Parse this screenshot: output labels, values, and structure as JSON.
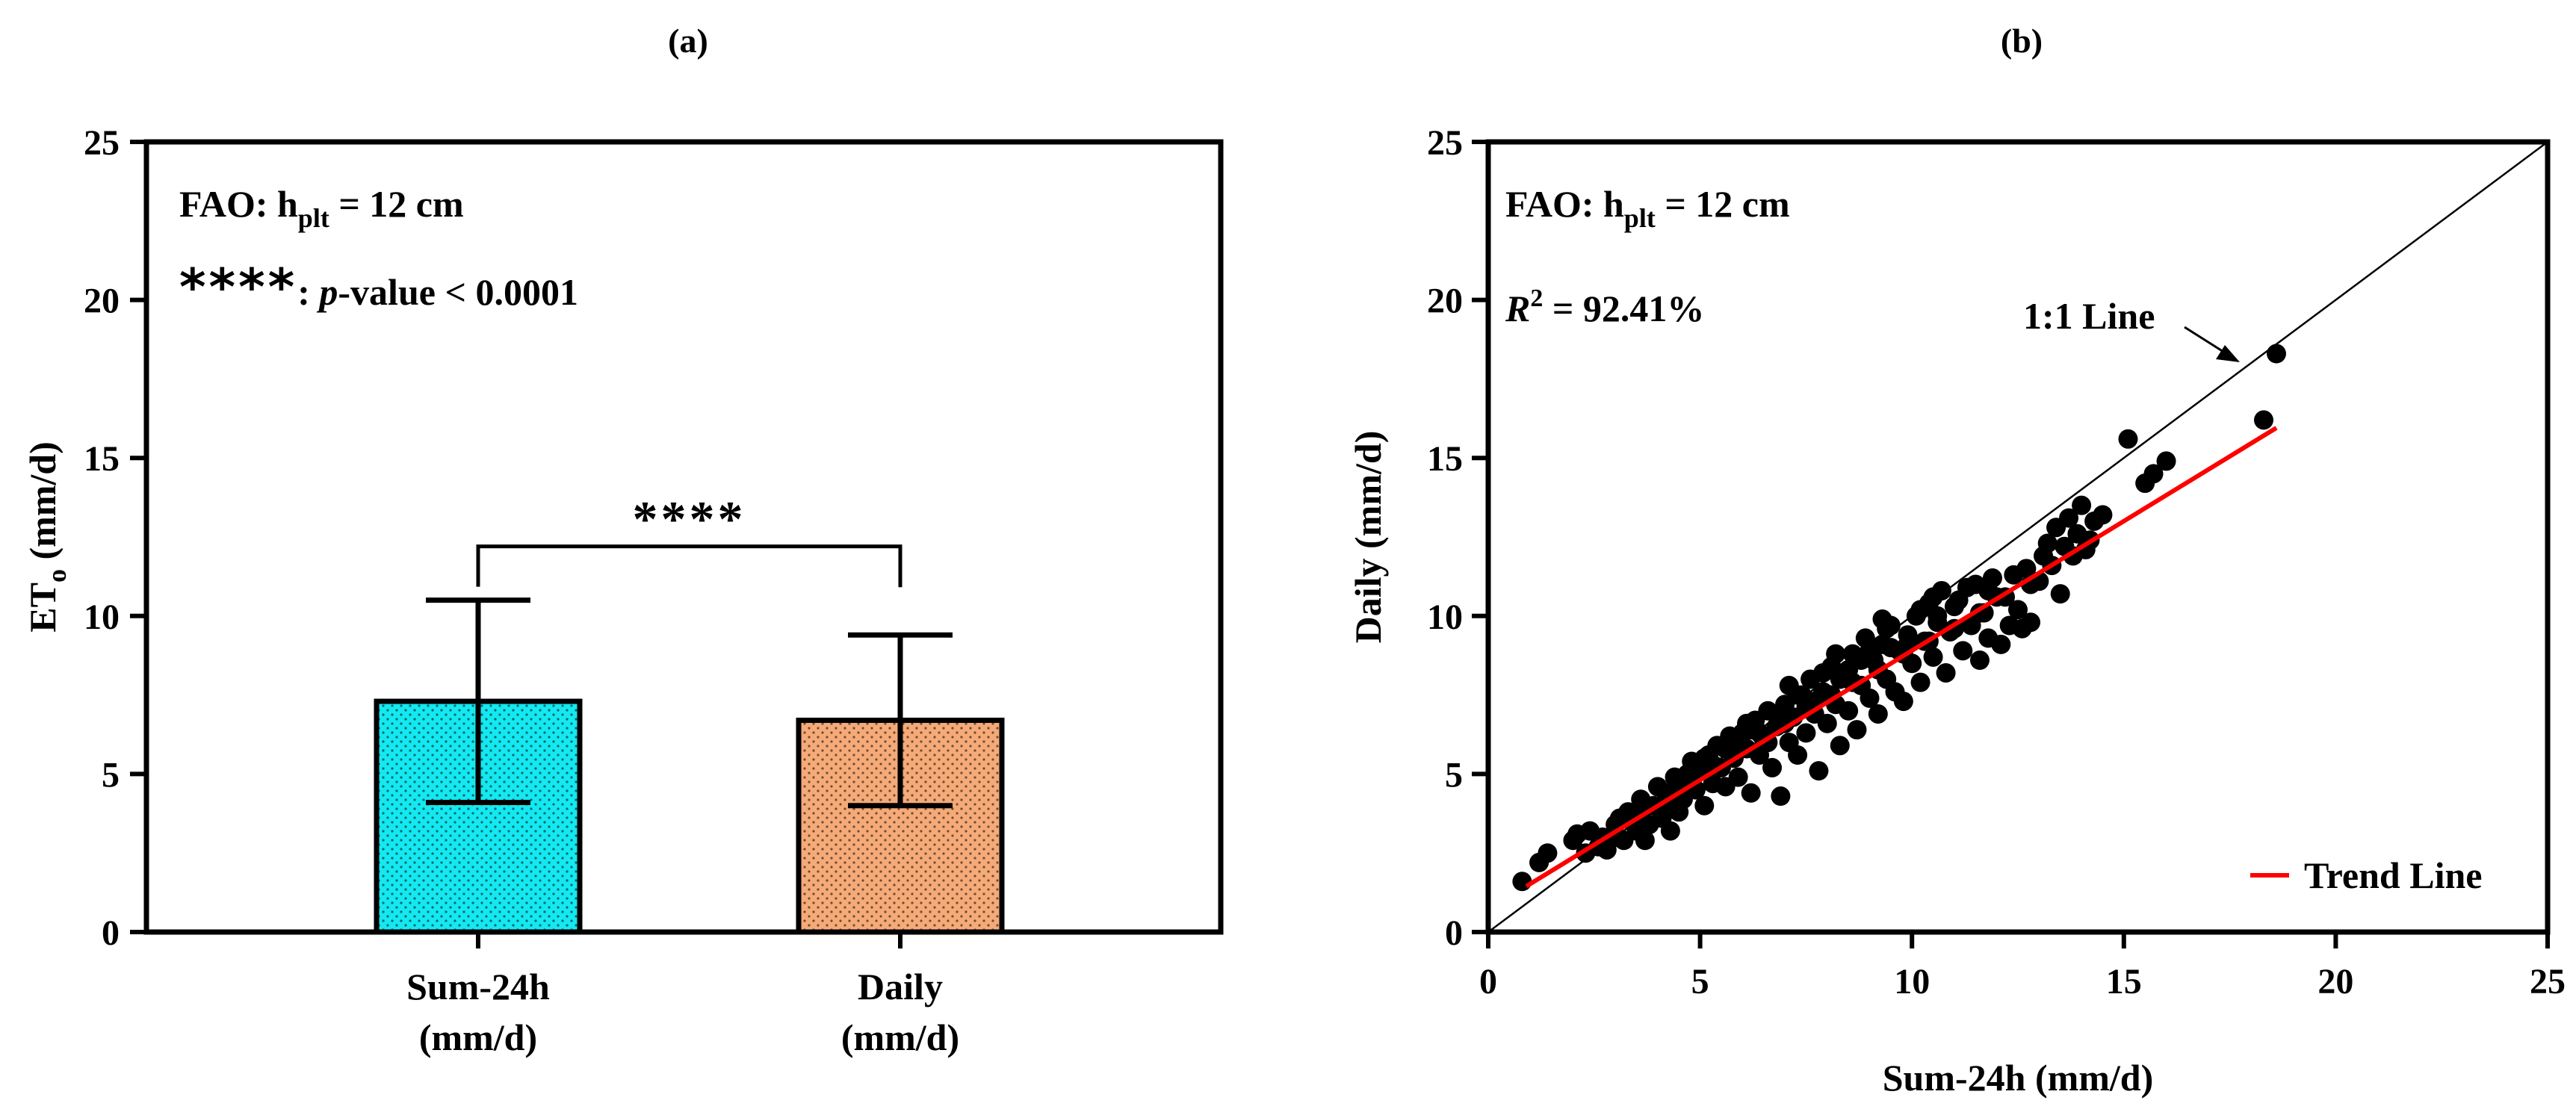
{
  "chart_data": [
    {
      "panel_label": "(a)",
      "type": "bar",
      "annotation": {
        "line1_prefix": "FAO: h",
        "line1_sub": "plt",
        "line1_suffix": " = 12 cm",
        "line2_stars": "****",
        "line2_sep": ": ",
        "line2_p": "p",
        "line2_rest": "-value < 0.0001"
      },
      "ylabel": "ET",
      "ylabel_sub": "o",
      "ylabel_suffix": " (mm/d)",
      "ylim": [
        0,
        25
      ],
      "yticks": [
        0,
        5,
        10,
        15,
        20,
        25
      ],
      "categories": [
        {
          "line1": "Sum-24h",
          "line2": "(mm/d)"
        },
        {
          "line1": "Daily",
          "line2": "(mm/d)"
        }
      ],
      "values": [
        7.3,
        6.7
      ],
      "errors": [
        3.2,
        2.7
      ],
      "colors": [
        "#14E8F0",
        "#F5AA78"
      ],
      "significance": "****"
    },
    {
      "panel_label": "(b)",
      "type": "scatter",
      "annotation": {
        "line1_prefix": "FAO: h",
        "line1_sub": "plt",
        "line1_suffix": " = 12 cm",
        "r2_label": "R",
        "r2_sup": "2",
        "r2_value": " = 92.41%"
      },
      "xlabel": "Sum-24h (mm/d)",
      "ylabel": "Daily (mm/d)",
      "xlim": [
        0,
        25
      ],
      "ylim": [
        0,
        25
      ],
      "xticks": [
        0,
        5,
        10,
        15,
        20,
        25
      ],
      "yticks": [
        0,
        5,
        10,
        15,
        20,
        25
      ],
      "one_to_one_label": "1:1 Line",
      "legend": {
        "label": "Trend Line",
        "color": "#ff0000",
        "position": "bottom-right"
      },
      "trend_line": {
        "x": [
          0.9,
          18.6
        ],
        "y": [
          1.45,
          15.95
        ]
      },
      "points": [
        [
          0.8,
          1.6
        ],
        [
          1.2,
          2.2
        ],
        [
          1.4,
          2.5
        ],
        [
          2.0,
          2.9
        ],
        [
          2.1,
          3.1
        ],
        [
          2.3,
          2.5
        ],
        [
          2.4,
          3.2
        ],
        [
          2.6,
          2.7
        ],
        [
          2.8,
          2.6
        ],
        [
          3.0,
          3.0
        ],
        [
          3.1,
          3.6
        ],
        [
          3.2,
          2.9
        ],
        [
          3.3,
          3.8
        ],
        [
          3.5,
          3.2
        ],
        [
          3.6,
          4.2
        ],
        [
          3.7,
          2.9
        ],
        [
          3.8,
          3.4
        ],
        [
          3.9,
          4.0
        ],
        [
          4.0,
          4.6
        ],
        [
          4.1,
          3.6
        ],
        [
          4.2,
          4.4
        ],
        [
          4.3,
          3.2
        ],
        [
          4.4,
          4.9
        ],
        [
          4.5,
          3.8
        ],
        [
          4.6,
          4.2
        ],
        [
          4.7,
          5.0
        ],
        [
          4.8,
          5.4
        ],
        [
          4.9,
          4.5
        ],
        [
          5.0,
          5.1
        ],
        [
          5.1,
          4.0
        ],
        [
          5.2,
          5.6
        ],
        [
          5.3,
          4.7
        ],
        [
          5.4,
          5.9
        ],
        [
          5.5,
          5.2
        ],
        [
          5.6,
          4.6
        ],
        [
          5.7,
          6.2
        ],
        [
          5.8,
          5.5
        ],
        [
          5.9,
          4.9
        ],
        [
          6.0,
          6.3
        ],
        [
          6.1,
          5.8
        ],
        [
          6.2,
          4.4
        ],
        [
          6.3,
          6.7
        ],
        [
          6.4,
          5.6
        ],
        [
          6.5,
          6.1
        ],
        [
          6.6,
          7.0
        ],
        [
          6.7,
          5.2
        ],
        [
          6.8,
          6.5
        ],
        [
          6.9,
          4.3
        ],
        [
          7.0,
          7.2
        ],
        [
          7.1,
          6.0
        ],
        [
          7.2,
          6.8
        ],
        [
          7.3,
          5.6
        ],
        [
          7.4,
          7.5
        ],
        [
          7.5,
          6.3
        ],
        [
          7.6,
          8.0
        ],
        [
          7.7,
          6.9
        ],
        [
          7.8,
          5.1
        ],
        [
          7.9,
          7.6
        ],
        [
          8.0,
          6.6
        ],
        [
          8.1,
          8.4
        ],
        [
          8.2,
          7.2
        ],
        [
          8.3,
          5.9
        ],
        [
          8.4,
          8.1
        ],
        [
          8.5,
          7.0
        ],
        [
          8.6,
          8.8
        ],
        [
          8.7,
          6.4
        ],
        [
          8.8,
          7.8
        ],
        [
          8.9,
          9.3
        ],
        [
          9.0,
          7.4
        ],
        [
          9.1,
          8.6
        ],
        [
          9.2,
          6.9
        ],
        [
          9.3,
          9.1
        ],
        [
          9.4,
          8.0
        ],
        [
          9.5,
          9.7
        ],
        [
          9.6,
          7.6
        ],
        [
          9.7,
          8.9
        ],
        [
          9.8,
          7.3
        ],
        [
          9.9,
          9.4
        ],
        [
          10.0,
          8.5
        ],
        [
          10.1,
          10.0
        ],
        [
          10.2,
          7.9
        ],
        [
          10.3,
          9.2
        ],
        [
          10.4,
          10.4
        ],
        [
          10.5,
          8.7
        ],
        [
          10.6,
          9.8
        ],
        [
          10.7,
          10.8
        ],
        [
          10.8,
          8.2
        ],
        [
          10.9,
          9.5
        ],
        [
          11.0,
          10.3
        ],
        [
          11.2,
          8.9
        ],
        [
          11.3,
          10.9
        ],
        [
          11.4,
          9.7
        ],
        [
          11.5,
          11.0
        ],
        [
          11.6,
          8.6
        ],
        [
          11.7,
          10.1
        ],
        [
          11.8,
          9.3
        ],
        [
          12.0,
          10.6
        ],
        [
          12.1,
          9.1
        ],
        [
          12.3,
          9.7
        ],
        [
          12.5,
          10.2
        ],
        [
          12.6,
          9.6
        ],
        [
          12.8,
          9.8
        ],
        [
          13.0,
          11.1
        ],
        [
          13.2,
          12.3
        ],
        [
          13.3,
          11.6
        ],
        [
          13.4,
          12.8
        ],
        [
          13.5,
          10.7
        ],
        [
          13.6,
          12.2
        ],
        [
          13.7,
          13.1
        ],
        [
          13.8,
          11.9
        ],
        [
          13.9,
          12.6
        ],
        [
          14.0,
          13.5
        ],
        [
          14.2,
          12.4
        ],
        [
          14.3,
          13.0
        ],
        [
          14.5,
          13.2
        ],
        [
          15.1,
          15.6
        ],
        [
          15.5,
          14.2
        ],
        [
          15.7,
          14.5
        ],
        [
          16.0,
          14.9
        ],
        [
          18.3,
          16.2
        ],
        [
          18.6,
          18.3
        ],
        [
          3.4,
          3.5
        ],
        [
          4.5,
          4.7
        ],
        [
          5.3,
          5.3
        ],
        [
          5.9,
          6.0
        ],
        [
          6.4,
          6.3
        ],
        [
          7.0,
          6.6
        ],
        [
          7.5,
          7.1
        ],
        [
          8.1,
          7.5
        ],
        [
          8.6,
          7.9
        ],
        [
          9.2,
          8.3
        ],
        [
          9.8,
          8.8
        ],
        [
          10.4,
          9.2
        ],
        [
          11.0,
          9.6
        ],
        [
          11.6,
          10.1
        ],
        [
          12.2,
          10.6
        ],
        [
          12.8,
          11.0
        ],
        [
          3.0,
          3.4
        ],
        [
          4.8,
          4.9
        ],
        [
          6.2,
          6.4
        ],
        [
          7.3,
          7.5
        ],
        [
          8.3,
          8.0
        ],
        [
          9.5,
          9.0
        ],
        [
          10.6,
          10.0
        ],
        [
          11.8,
          10.8
        ],
        [
          6.8,
          6.9
        ],
        [
          7.9,
          8.2
        ],
        [
          8.8,
          8.6
        ],
        [
          9.4,
          9.6
        ],
        [
          10.2,
          10.2
        ],
        [
          5.6,
          5.8
        ],
        [
          4.2,
          4.1
        ],
        [
          3.6,
          3.7
        ],
        [
          6.6,
          6.0
        ],
        [
          7.7,
          7.3
        ],
        [
          8.5,
          8.3
        ],
        [
          9.0,
          8.9
        ],
        [
          9.9,
          9.1
        ],
        [
          11.1,
          10.5
        ],
        [
          12.4,
          11.3
        ],
        [
          13.1,
          11.9
        ],
        [
          14.1,
          12.1
        ],
        [
          2.7,
          3.0
        ],
        [
          5.1,
          5.5
        ],
        [
          6.1,
          6.6
        ],
        [
          7.1,
          7.8
        ],
        [
          8.2,
          8.8
        ],
        [
          9.3,
          9.9
        ],
        [
          10.5,
          10.6
        ],
        [
          11.9,
          11.2
        ],
        [
          12.7,
          11.5
        ]
      ]
    }
  ]
}
